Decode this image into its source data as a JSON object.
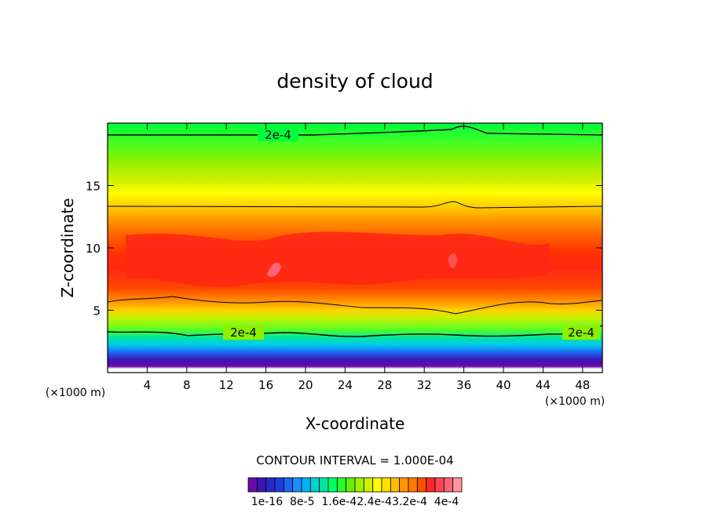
{
  "chart_data": {
    "type": "heatmap",
    "title": "density of cloud",
    "xlabel": "X-coordinate",
    "ylabel": "Z-coordinate",
    "x_unit": "(×1000 m)",
    "x_unit_right": "(×1000 m)",
    "xlim": [
      0,
      50
    ],
    "ylim": [
      0,
      20
    ],
    "x_ticks": [
      4,
      8,
      12,
      16,
      20,
      24,
      28,
      32,
      36,
      40,
      44,
      48
    ],
    "y_ticks": [
      5,
      10,
      15
    ],
    "contour_label_top": "2e-4",
    "contour_label_mid": "2e-4",
    "contour_label_right": "2e-4",
    "contour_interval_text": "CONTOUR INTERVAL = 1.000E-04",
    "colorbar": {
      "colors": [
        "#6a0aa8",
        "#3c14b4",
        "#2828c8",
        "#1e3cdc",
        "#1e64f0",
        "#1e8cff",
        "#00b4f0",
        "#00d2d2",
        "#00e6a0",
        "#00ff64",
        "#28ff28",
        "#64f000",
        "#a0f000",
        "#d2f000",
        "#ffff00",
        "#ffe000",
        "#ffbe00",
        "#ff9600",
        "#ff7800",
        "#ff5000",
        "#ff2828",
        "#ff4650",
        "#ff6478",
        "#ff96a0"
      ],
      "tick_labels": [
        "1e-16",
        "8e-5",
        "1.6e-4",
        "2.4e-4",
        "3.2e-4",
        "4e-4"
      ],
      "tick_text": "1e-16  8e-5  1.6e-42.4e-43.2e-4  4e-4"
    }
  }
}
